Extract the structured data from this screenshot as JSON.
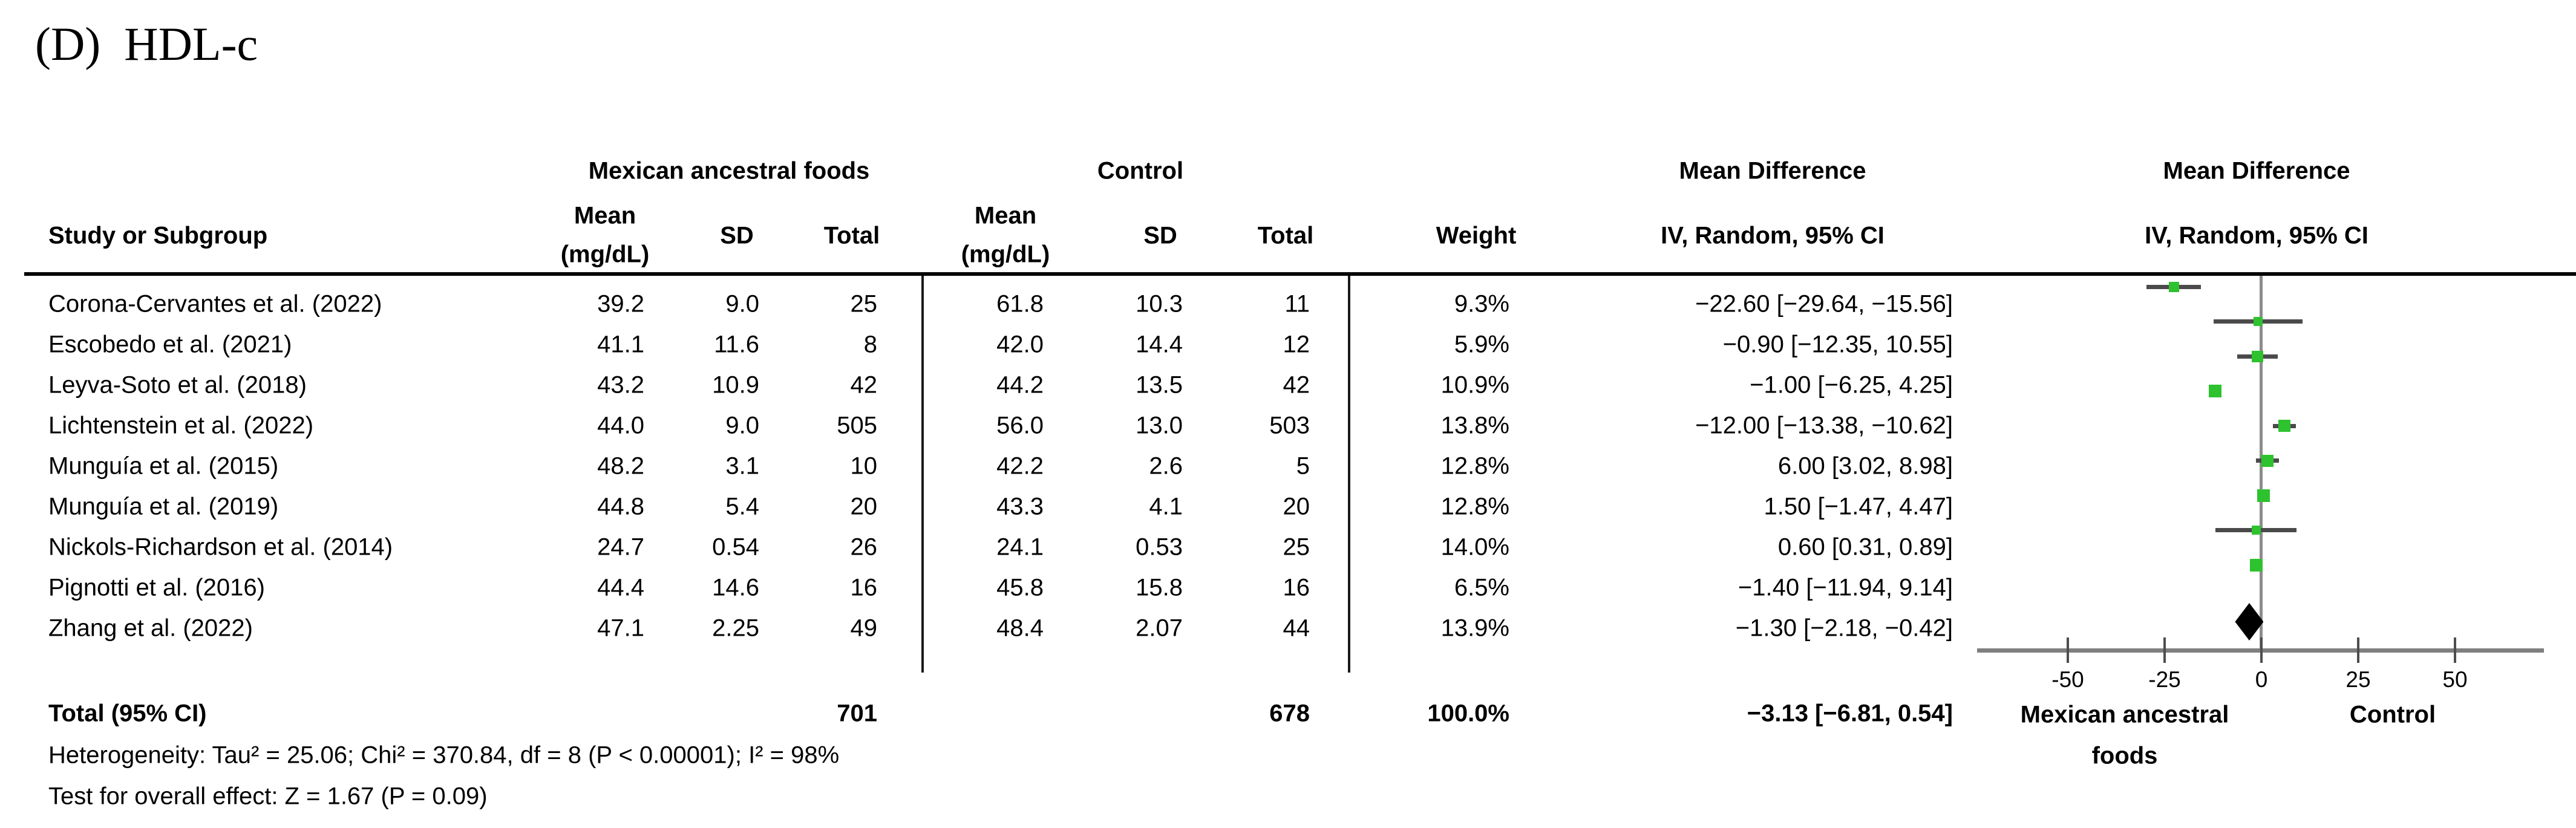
{
  "title": "(D)  HDL-c",
  "table": {
    "group_headers": {
      "experimental": "Mexican ancestral foods",
      "control": "Control",
      "mean_difference_text": "Mean Difference",
      "mean_difference_plot": "Mean Difference"
    },
    "col_headers": {
      "study": "Study or Subgroup",
      "mean": "Mean",
      "mean_unit": "(mg/dL)",
      "sd": "SD",
      "total": "Total",
      "weight": "Weight",
      "iv_text": "IV, Random, 95% CI",
      "iv_plot": "IV, Random, 95% CI"
    },
    "rows": [
      {
        "study": "Corona-Cervantes et al. (2022)",
        "e_mean": "39.2",
        "e_sd": "9.0",
        "e_total": "25",
        "c_mean": "61.8",
        "c_sd": "10.3",
        "c_total": "11",
        "weight": "9.3%",
        "ci": "−22.60 [−29.64, −15.56]"
      },
      {
        "study": "Escobedo et al. (2021)",
        "e_mean": "41.1",
        "e_sd": "11.6",
        "e_total": "8",
        "c_mean": "42.0",
        "c_sd": "14.4",
        "c_total": "12",
        "weight": "5.9%",
        "ci": "−0.90 [−12.35, 10.55]"
      },
      {
        "study": "Leyva-Soto et al. (2018)",
        "e_mean": "43.2",
        "e_sd": "10.9",
        "e_total": "42",
        "c_mean": "44.2",
        "c_sd": "13.5",
        "c_total": "42",
        "weight": "10.9%",
        "ci": "−1.00 [−6.25, 4.25]"
      },
      {
        "study": "Lichtenstein et al. (2022)",
        "e_mean": "44.0",
        "e_sd": "9.0",
        "e_total": "505",
        "c_mean": "56.0",
        "c_sd": "13.0",
        "c_total": "503",
        "weight": "13.8%",
        "ci": "−12.00 [−13.38, −10.62]"
      },
      {
        "study": "Munguía et al. (2015)",
        "e_mean": "48.2",
        "e_sd": "3.1",
        "e_total": "10",
        "c_mean": "42.2",
        "c_sd": "2.6",
        "c_total": "5",
        "weight": "12.8%",
        "ci": "6.00 [3.02, 8.98]"
      },
      {
        "study": "Munguía et al. (2019)",
        "e_mean": "44.8",
        "e_sd": "5.4",
        "e_total": "20",
        "c_mean": "43.3",
        "c_sd": "4.1",
        "c_total": "20",
        "weight": "12.8%",
        "ci": "1.50 [−1.47, 4.47]"
      },
      {
        "study": "Nickols-Richardson et al. (2014)",
        "e_mean": "24.7",
        "e_sd": "0.54",
        "e_total": "26",
        "c_mean": "24.1",
        "c_sd": "0.53",
        "c_total": "25",
        "weight": "14.0%",
        "ci": "0.60 [0.31, 0.89]"
      },
      {
        "study": "Pignotti et al. (2016)",
        "e_mean": "44.4",
        "e_sd": "14.6",
        "e_total": "16",
        "c_mean": "45.8",
        "c_sd": "15.8",
        "c_total": "16",
        "weight": "6.5%",
        "ci": "−1.40 [−11.94, 9.14]"
      },
      {
        "study": "Zhang et al. (2022)",
        "e_mean": "47.1",
        "e_sd": "2.25",
        "e_total": "49",
        "c_mean": "48.4",
        "c_sd": "2.07",
        "c_total": "44",
        "weight": "13.9%",
        "ci": "−1.30 [−2.18, −0.42]"
      }
    ],
    "total_row": {
      "label": "Total (95% CI)",
      "e_total": "701",
      "c_total": "678",
      "weight": "100.0%",
      "ci": "−3.13 [−6.81, 0.54]"
    },
    "heterogeneity": "Heterogeneity: Tau² = 25.06; Chi² = 370.84, df = 8 (P < 0.00001); I² = 98%",
    "overall_effect": "Test for overall effect: Z = 1.67 (P = 0.09)"
  },
  "plot": {
    "tick_labels": [
      "-50",
      "-25",
      "0",
      "25",
      "50"
    ],
    "left_label_line1": "Mexican ancestral",
    "left_label_line2": "foods",
    "right_label": "Control",
    "marker_color": "#2EC22E",
    "ci_color": "#4A4A4A",
    "axis_color": "#7F7F7F",
    "diamond_color": "#000000"
  },
  "chart_data": {
    "type": "forest",
    "title": "(D) HDL-c",
    "effect_measure": "Mean Difference, IV, Random, 95% CI (mg/dL)",
    "x_ticks": [
      -50,
      -25,
      0,
      25,
      50
    ],
    "xlim": [
      -50,
      50
    ],
    "favors_left_label": "Mexican ancestral foods",
    "favors_right_label": "Control",
    "studies": [
      "Corona-Cervantes et al. (2022)",
      "Escobedo et al. (2021)",
      "Leyva-Soto et al. (2018)",
      "Lichtenstein et al. (2022)",
      "Munguía et al. (2015)",
      "Munguía et al. (2019)",
      "Nickols-Richardson et al. (2014)",
      "Pignotti et al. (2016)",
      "Zhang et al. (2022)"
    ],
    "md": [
      -22.6,
      -0.9,
      -1.0,
      -12.0,
      6.0,
      1.5,
      0.6,
      -1.4,
      -1.3
    ],
    "ci_low": [
      -29.64,
      -12.35,
      -6.25,
      -13.38,
      3.02,
      -1.47,
      0.31,
      -11.94,
      -2.18
    ],
    "ci_high": [
      -15.56,
      10.55,
      4.25,
      -10.62,
      8.98,
      4.47,
      0.89,
      9.14,
      -0.42
    ],
    "weight_pct": [
      9.3,
      5.9,
      10.9,
      13.8,
      12.8,
      12.8,
      14.0,
      6.5,
      13.9
    ],
    "total": {
      "md": -3.13,
      "ci_low": -6.81,
      "ci_high": 0.54
    }
  }
}
